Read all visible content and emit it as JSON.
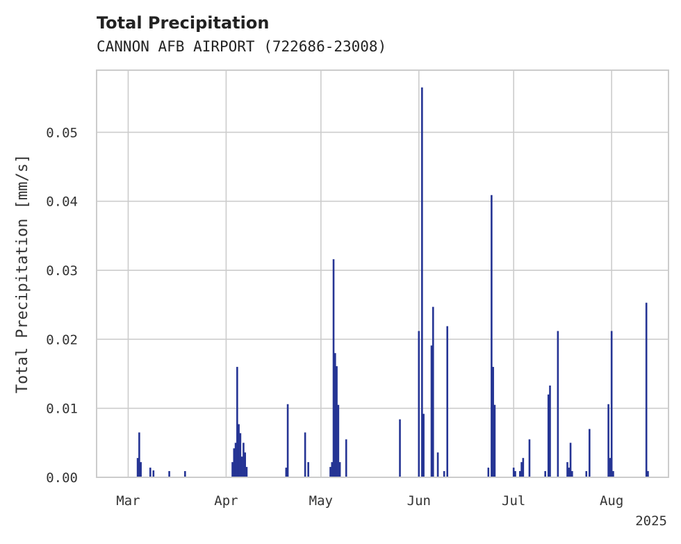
{
  "chart_data": {
    "type": "bar",
    "title": "Total Precipitation",
    "subtitle": "CANNON AFB AIRPORT (722686-23008)",
    "ylabel": "Total Precipitation [mm/s]",
    "xlabel": "",
    "year_label": "2025",
    "x_type": "date",
    "xlim": [
      "2025-02-19",
      "2025-08-19"
    ],
    "ylim": [
      0,
      0.059
    ],
    "grid": true,
    "color": "#253494",
    "x_ticks": [
      {
        "date": "2025-03-01",
        "label": "Mar"
      },
      {
        "date": "2025-04-01",
        "label": "Apr"
      },
      {
        "date": "2025-05-01",
        "label": "May"
      },
      {
        "date": "2025-06-01",
        "label": "Jun"
      },
      {
        "date": "2025-07-01",
        "label": "Jul"
      },
      {
        "date": "2025-08-01",
        "label": "Aug"
      }
    ],
    "y_ticks": [
      {
        "value": 0.0,
        "label": "0.00"
      },
      {
        "value": 0.01,
        "label": "0.01"
      },
      {
        "value": 0.02,
        "label": "0.02"
      },
      {
        "value": 0.03,
        "label": "0.03"
      },
      {
        "value": 0.04,
        "label": "0.04"
      },
      {
        "value": 0.05,
        "label": "0.05"
      }
    ],
    "points": [
      {
        "x": "2025-03-04",
        "y": 0.0028
      },
      {
        "x": "2025-03-04T12:00",
        "y": 0.0065
      },
      {
        "x": "2025-03-05",
        "y": 0.0022
      },
      {
        "x": "2025-03-08",
        "y": 0.0014
      },
      {
        "x": "2025-03-09",
        "y": 0.001
      },
      {
        "x": "2025-03-14",
        "y": 0.0009
      },
      {
        "x": "2025-03-19",
        "y": 0.0009
      },
      {
        "x": "2025-04-03",
        "y": 0.0022
      },
      {
        "x": "2025-04-03T12:00",
        "y": 0.0042
      },
      {
        "x": "2025-04-04",
        "y": 0.005
      },
      {
        "x": "2025-04-04T12:00",
        "y": 0.016
      },
      {
        "x": "2025-04-05",
        "y": 0.0077
      },
      {
        "x": "2025-04-05T12:00",
        "y": 0.0064
      },
      {
        "x": "2025-04-06",
        "y": 0.003
      },
      {
        "x": "2025-04-06T12:00",
        "y": 0.005
      },
      {
        "x": "2025-04-07",
        "y": 0.0036
      },
      {
        "x": "2025-04-07T12:00",
        "y": 0.0015
      },
      {
        "x": "2025-04-20",
        "y": 0.0014
      },
      {
        "x": "2025-04-20T12:00",
        "y": 0.0106
      },
      {
        "x": "2025-04-26",
        "y": 0.0065
      },
      {
        "x": "2025-04-27",
        "y": 0.0022
      },
      {
        "x": "2025-05-04",
        "y": 0.0015
      },
      {
        "x": "2025-05-04T12:00",
        "y": 0.0022
      },
      {
        "x": "2025-05-05",
        "y": 0.0316
      },
      {
        "x": "2025-05-05T12:00",
        "y": 0.018
      },
      {
        "x": "2025-05-06",
        "y": 0.0161
      },
      {
        "x": "2025-05-06T12:00",
        "y": 0.0105
      },
      {
        "x": "2025-05-07",
        "y": 0.0022
      },
      {
        "x": "2025-05-09",
        "y": 0.0055
      },
      {
        "x": "2025-05-26",
        "y": 0.0084
      },
      {
        "x": "2025-06-01",
        "y": 0.0212
      },
      {
        "x": "2025-06-02",
        "y": 0.0565
      },
      {
        "x": "2025-06-02T12:00",
        "y": 0.0092
      },
      {
        "x": "2025-06-05",
        "y": 0.0191
      },
      {
        "x": "2025-06-05T12:00",
        "y": 0.0247
      },
      {
        "x": "2025-06-07",
        "y": 0.0036
      },
      {
        "x": "2025-06-09",
        "y": 0.0009
      },
      {
        "x": "2025-06-10",
        "y": 0.0219
      },
      {
        "x": "2025-06-23",
        "y": 0.0014
      },
      {
        "x": "2025-06-24",
        "y": 0.0409
      },
      {
        "x": "2025-06-24T12:00",
        "y": 0.016
      },
      {
        "x": "2025-06-25",
        "y": 0.0105
      },
      {
        "x": "2025-07-01",
        "y": 0.0014
      },
      {
        "x": "2025-07-01T12:00",
        "y": 0.0009
      },
      {
        "x": "2025-07-03",
        "y": 0.0009
      },
      {
        "x": "2025-07-03T12:00",
        "y": 0.0022
      },
      {
        "x": "2025-07-04",
        "y": 0.0028
      },
      {
        "x": "2025-07-06",
        "y": 0.0055
      },
      {
        "x": "2025-07-11",
        "y": 0.0009
      },
      {
        "x": "2025-07-12",
        "y": 0.012
      },
      {
        "x": "2025-07-12T12:00",
        "y": 0.0133
      },
      {
        "x": "2025-07-15",
        "y": 0.0212
      },
      {
        "x": "2025-07-18",
        "y": 0.0022
      },
      {
        "x": "2025-07-18T12:00",
        "y": 0.0014
      },
      {
        "x": "2025-07-19",
        "y": 0.005
      },
      {
        "x": "2025-07-19T12:00",
        "y": 0.0009
      },
      {
        "x": "2025-07-24",
        "y": 0.0009
      },
      {
        "x": "2025-07-25",
        "y": 0.007
      },
      {
        "x": "2025-07-31",
        "y": 0.0106
      },
      {
        "x": "2025-07-31T12:00",
        "y": 0.0028
      },
      {
        "x": "2025-08-01",
        "y": 0.0212
      },
      {
        "x": "2025-08-01T12:00",
        "y": 0.0009
      },
      {
        "x": "2025-08-12",
        "y": 0.0253
      },
      {
        "x": "2025-08-12T12:00",
        "y": 0.0009
      }
    ]
  }
}
